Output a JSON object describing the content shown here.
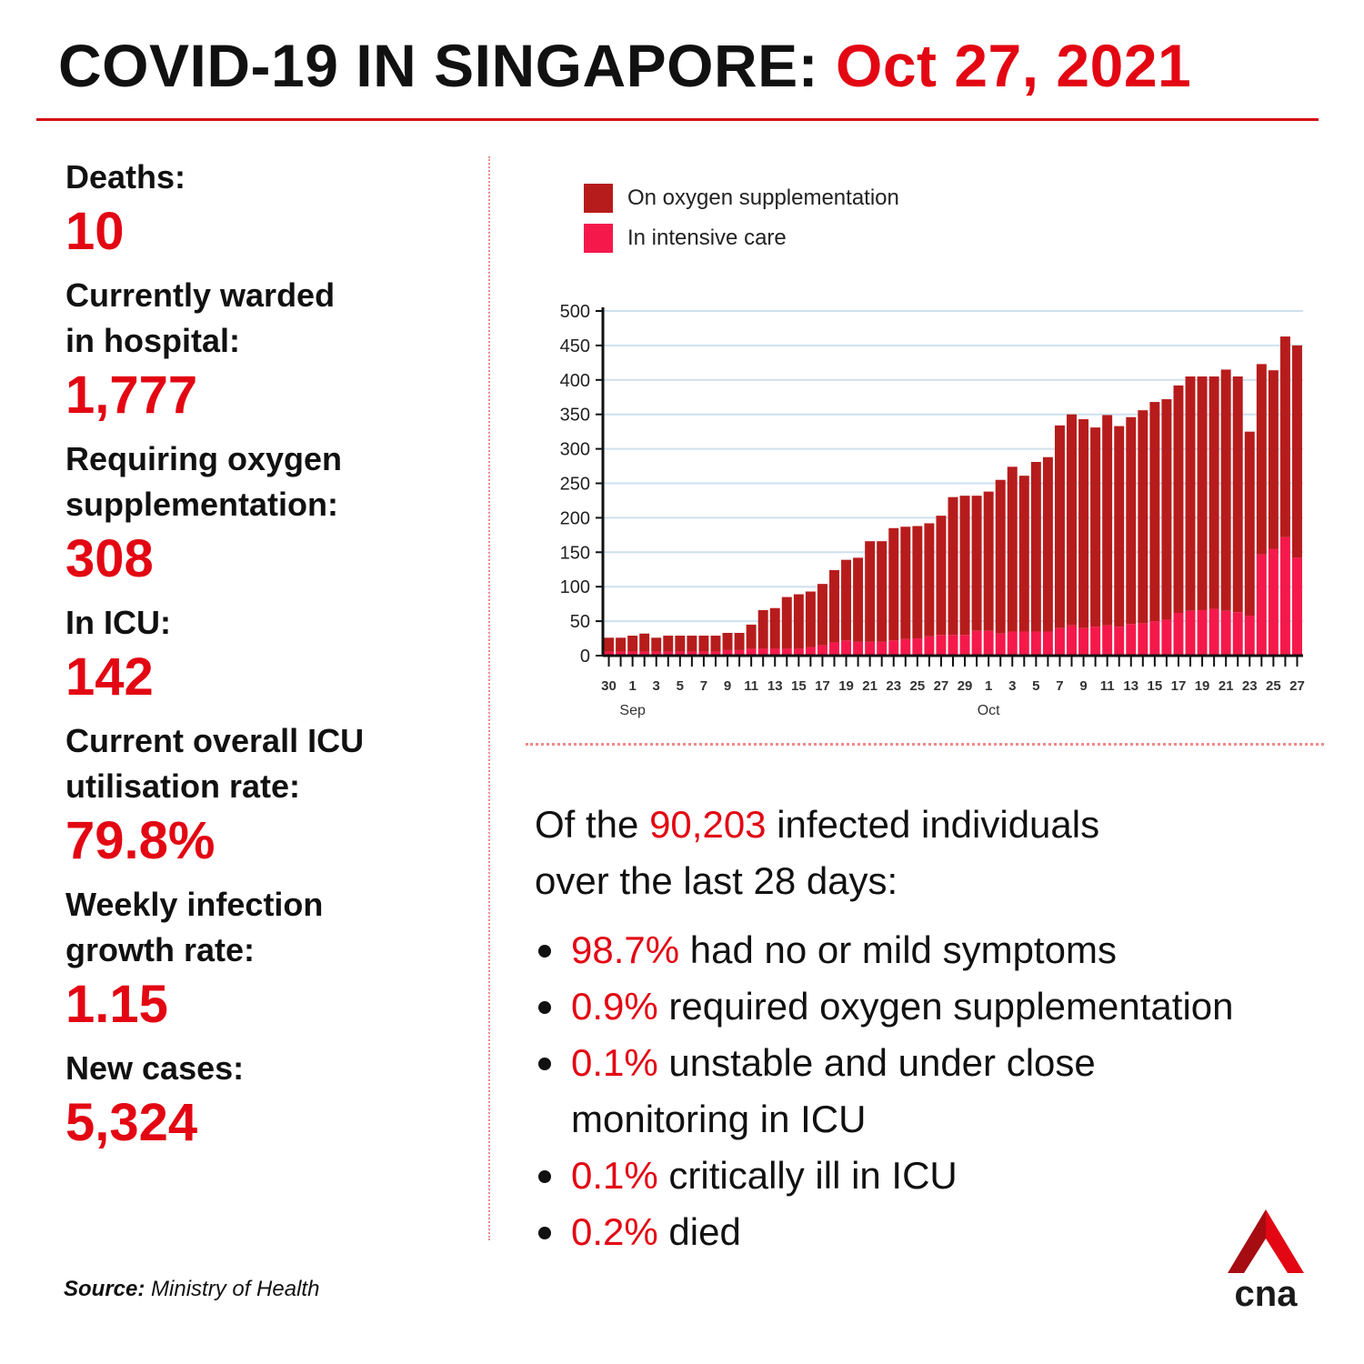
{
  "header": {
    "title": "COVID-19 IN SINGAPORE:",
    "date": "Oct 27, 2021"
  },
  "stats": [
    {
      "label_lines": [
        "Deaths:"
      ],
      "value": "10"
    },
    {
      "label_lines": [
        "Currently warded",
        "in hospital:"
      ],
      "value": "1,777"
    },
    {
      "label_lines": [
        "Requiring oxygen",
        "supplementation:"
      ],
      "value": "308"
    },
    {
      "label_lines": [
        "In ICU:"
      ],
      "value": "142"
    },
    {
      "label_lines": [
        "Current overall ICU",
        "utilisation rate:"
      ],
      "value": "79.8%"
    },
    {
      "label_lines": [
        "Weekly infection",
        "growth rate:"
      ],
      "value": "1.15"
    },
    {
      "label_lines": [
        "New cases:"
      ],
      "value": "5,324"
    }
  ],
  "source": {
    "label": "Source:",
    "text": "Ministry of Health"
  },
  "summary": {
    "prefix": "Of the",
    "count": "90,203",
    "middle": "infected individuals",
    "line2": "over the last 28 days:",
    "bullets": [
      {
        "pct": "98.7%",
        "text": "had no or mild symptoms"
      },
      {
        "pct": "0.9%",
        "text": "required oxygen supplementation"
      },
      {
        "pct": "0.1%",
        "text": "unstable and under close monitoring in ICU"
      },
      {
        "pct": "0.1%",
        "text": "critically ill in ICU"
      },
      {
        "pct": "0.2%",
        "text": "died"
      }
    ]
  },
  "logo": {
    "text": "cna"
  },
  "colors": {
    "accent": "#e30613",
    "oxygen": "#b71c1c",
    "icu": "#f5194b",
    "grid": "#cfe0ee"
  },
  "chart_data": {
    "type": "bar",
    "stacked": true,
    "title": "",
    "xlabel": "",
    "ylabel": "",
    "ylim": [
      0,
      500
    ],
    "yticks": [
      0,
      50,
      100,
      150,
      200,
      250,
      300,
      350,
      400,
      450,
      500
    ],
    "grid": true,
    "legend_position": "top-left",
    "categories": [
      "30",
      "31",
      "1",
      "2",
      "3",
      "4",
      "5",
      "6",
      "7",
      "8",
      "9",
      "10",
      "11",
      "12",
      "13",
      "14",
      "15",
      "16",
      "17",
      "18",
      "19",
      "20",
      "21",
      "22",
      "23",
      "24",
      "25",
      "26",
      "27",
      "28",
      "29",
      "30",
      "1",
      "2",
      "3",
      "4",
      "5",
      "6",
      "7",
      "8",
      "9",
      "10",
      "11",
      "12",
      "13",
      "14",
      "15",
      "16",
      "17",
      "18",
      "19",
      "20",
      "21",
      "22",
      "23",
      "24",
      "25",
      "26",
      "27"
    ],
    "tick_labels": [
      "30",
      "1",
      "3",
      "5",
      "7",
      "9",
      "11",
      "13",
      "15",
      "17",
      "19",
      "21",
      "23",
      "25",
      "27",
      "29",
      "1",
      "3",
      "5",
      "7",
      "9",
      "11",
      "13",
      "15",
      "17",
      "19",
      "21",
      "23",
      "25",
      "27"
    ],
    "month_labels": [
      {
        "label": "Sep",
        "at_category": 2
      },
      {
        "label": "Oct",
        "at_category": 32
      }
    ],
    "series": [
      {
        "name": "On oxygen supplementation",
        "values": [
          20,
          20,
          23,
          26,
          20,
          23,
          23,
          23,
          23,
          23,
          25,
          25,
          35,
          56,
          59,
          75,
          79,
          81,
          89,
          105,
          117,
          122,
          146,
          146,
          163,
          163,
          163,
          164,
          173,
          200,
          202,
          196,
          202,
          223,
          239,
          226,
          246,
          253,
          294,
          306,
          303,
          289,
          305,
          291,
          300,
          309,
          318,
          320,
          330,
          340,
          339,
          337,
          350,
          342,
          267,
          276,
          259,
          291,
          308
        ],
        "_": "computed as total minus ICU"
      },
      {
        "name": "In intensive care",
        "values": [
          6,
          6,
          6,
          6,
          6,
          6,
          6,
          6,
          6,
          6,
          8,
          8,
          10,
          10,
          10,
          10,
          10,
          12,
          15,
          19,
          22,
          20,
          20,
          20,
          22,
          24,
          25,
          28,
          30,
          30,
          30,
          36,
          36,
          32,
          35,
          35,
          35,
          35,
          40,
          44,
          40,
          42,
          44,
          42,
          46,
          47,
          50,
          52,
          62,
          65,
          66,
          68,
          65,
          63,
          58,
          147,
          155,
          172,
          142
        ]
      }
    ],
    "totals": [
      26,
      26,
      29,
      32,
      26,
      29,
      29,
      29,
      29,
      29,
      33,
      33,
      45,
      66,
      69,
      85,
      89,
      93,
      104,
      124,
      139,
      142,
      166,
      166,
      185,
      187,
      188,
      192,
      203,
      230,
      232,
      232,
      238,
      255,
      274,
      261,
      281,
      288,
      334,
      350,
      343,
      331,
      349,
      333,
      346,
      356,
      368,
      372,
      392,
      405,
      405,
      405,
      415,
      405,
      325,
      423,
      414,
      463,
      450
    ]
  }
}
